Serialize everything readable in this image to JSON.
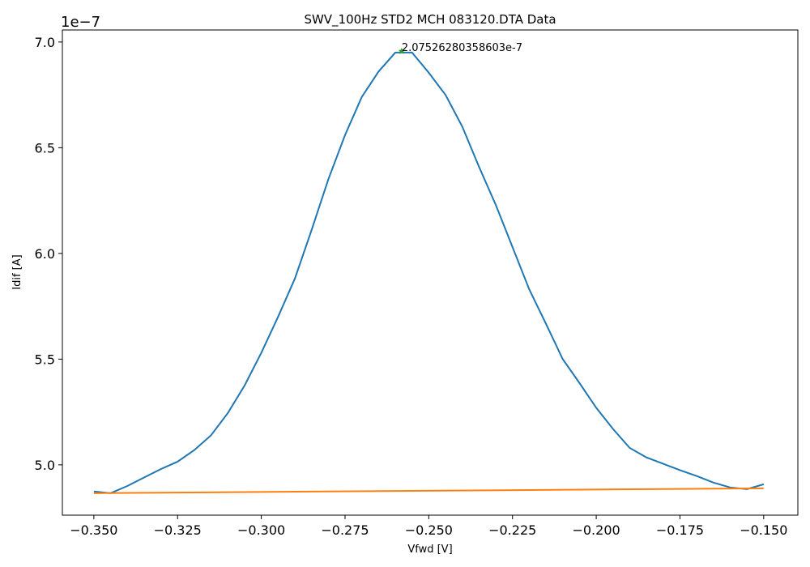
{
  "chart_data": {
    "type": "line",
    "title": "SWV_100Hz STD2 MCH 083120.DTA Data",
    "x_label": "Vfwd [V]",
    "y_label": "Idif [A]",
    "y_offset_label": "1e−7",
    "xlim": [
      -0.3594,
      -0.1398
    ],
    "ylim": [
      4.762e-07,
      7.057e-07
    ],
    "xticks": [
      {
        "value": -0.35,
        "label": "−0.350"
      },
      {
        "value": -0.325,
        "label": "−0.325"
      },
      {
        "value": -0.3,
        "label": "−0.300"
      },
      {
        "value": -0.275,
        "label": "−0.275"
      },
      {
        "value": -0.25,
        "label": "−0.250"
      },
      {
        "value": -0.225,
        "label": "−0.225"
      },
      {
        "value": -0.2,
        "label": "−0.200"
      },
      {
        "value": -0.175,
        "label": "−0.175"
      },
      {
        "value": -0.15,
        "label": "−0.150"
      }
    ],
    "yticks": [
      {
        "value": 5e-07,
        "label": "5.0"
      },
      {
        "value": 5.5e-07,
        "label": "5.5"
      },
      {
        "value": 6e-07,
        "label": "6.0"
      },
      {
        "value": 6.5e-07,
        "label": "6.5"
      },
      {
        "value": 7e-07,
        "label": "7.0"
      }
    ],
    "series": [
      {
        "color": "#1f77b4",
        "x": [
          -0.35,
          -0.345,
          -0.34,
          -0.335,
          -0.33,
          -0.325,
          -0.32,
          -0.315,
          -0.31,
          -0.305,
          -0.3,
          -0.295,
          -0.29,
          -0.285,
          -0.28,
          -0.275,
          -0.27,
          -0.265,
          -0.26,
          -0.255,
          -0.25,
          -0.245,
          -0.24,
          -0.235,
          -0.23,
          -0.225,
          -0.22,
          -0.215,
          -0.21,
          -0.205,
          -0.2,
          -0.195,
          -0.19,
          -0.185,
          -0.18,
          -0.175,
          -0.17,
          -0.165,
          -0.16,
          -0.155,
          -0.15
        ],
        "values": [
          4.874e-07,
          4.866e-07,
          4.9e-07,
          4.94e-07,
          4.98e-07,
          5.015e-07,
          5.07e-07,
          5.14e-07,
          5.245e-07,
          5.375e-07,
          5.53e-07,
          5.7e-07,
          5.88e-07,
          6.11e-07,
          6.35e-07,
          6.56e-07,
          6.74e-07,
          6.86e-07,
          6.95e-07,
          6.95e-07,
          6.855e-07,
          6.75e-07,
          6.6e-07,
          6.41e-07,
          6.23e-07,
          6.03e-07,
          5.83e-07,
          5.667e-07,
          5.5e-07,
          5.387e-07,
          5.27e-07,
          5.17e-07,
          5.08e-07,
          5.035e-07,
          5.005e-07,
          4.975e-07,
          4.947e-07,
          4.916e-07,
          4.893e-07,
          4.885e-07,
          4.908e-07
        ]
      },
      {
        "color": "#ff7f0e",
        "x": [
          -0.35,
          -0.15
        ],
        "values": [
          4.866e-07,
          4.889e-07
        ]
      }
    ],
    "annotation": {
      "x": -0.2581,
      "y": 6.958e-07,
      "label": "2.07526280358603e-7",
      "color": "#2ca02c"
    }
  }
}
